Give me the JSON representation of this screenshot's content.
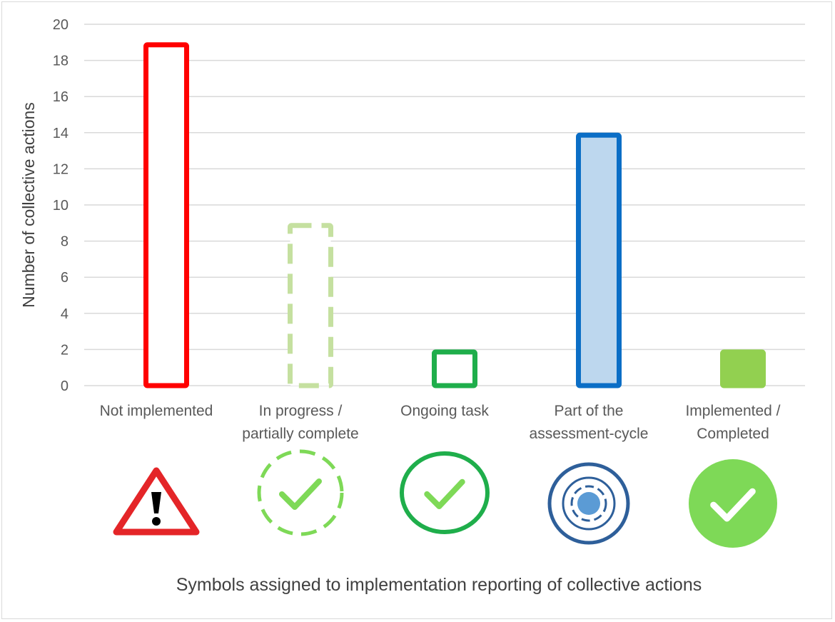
{
  "chart_data": {
    "type": "bar",
    "categories": [
      [
        "Not implemented"
      ],
      [
        "In progress /",
        "partially complete"
      ],
      [
        "Ongoing task"
      ],
      [
        "Part of the",
        "assessment-cycle"
      ],
      [
        "Implemented /",
        "Completed"
      ]
    ],
    "values": [
      19,
      9,
      2,
      14,
      2
    ],
    "ylabel": "Number of collective actions",
    "xlabel": "Symbols assigned to implementation reporting of collective actions",
    "ylim": [
      0,
      20
    ],
    "yticks": [
      0,
      2,
      4,
      6,
      8,
      10,
      12,
      14,
      16,
      18,
      20
    ],
    "grid": true,
    "bar_styles": [
      {
        "stroke": "#ff0000",
        "fill": "#ffffff",
        "dashed": false
      },
      {
        "stroke": "#c5e0a0",
        "fill": "#ffffff",
        "dashed": true
      },
      {
        "stroke": "#1fae4b",
        "fill": "#ffffff",
        "dashed": false
      },
      {
        "stroke": "#0b6ec6",
        "fill": "#bdd7ee",
        "dashed": false
      },
      {
        "stroke": "#92d050",
        "fill": "#92d050",
        "dashed": false
      }
    ],
    "symbols": [
      {
        "icon": "warning-triangle-icon",
        "color": "#e42528"
      },
      {
        "icon": "dashed-circle-check-icon",
        "color": "#7ed957"
      },
      {
        "icon": "circle-check-icon",
        "color": "#1fae4b"
      },
      {
        "icon": "concentric-circles-icon",
        "color": "#2e5f9a"
      },
      {
        "icon": "filled-circle-check-icon",
        "color": "#7ed957"
      }
    ]
  }
}
